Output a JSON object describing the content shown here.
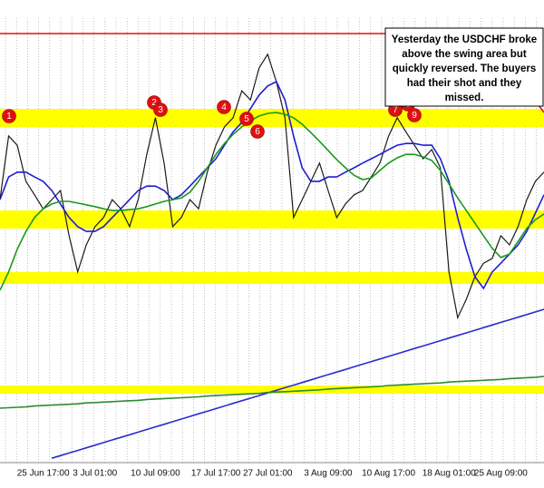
{
  "chart_data": {
    "type": "line",
    "categories": [
      null,
      null,
      null,
      null,
      null,
      "25 Jun 17:00",
      null,
      null,
      null,
      null,
      null,
      "3 Jul 01:00",
      null,
      null,
      null,
      null,
      null,
      null,
      "10 Jul 09:00",
      null,
      null,
      null,
      null,
      null,
      null,
      "17 Jul 17:00",
      null,
      null,
      null,
      null,
      null,
      "27 Jul 01:00",
      null,
      null,
      null,
      null,
      null,
      null,
      "3 Aug 09:00",
      null,
      null,
      null,
      null,
      null,
      null,
      "10 Aug 17:00",
      null,
      null,
      null,
      null,
      null,
      null,
      "18 Aug 01:00",
      null,
      null,
      null,
      null,
      null,
      "25 Aug 09:00",
      null,
      null,
      null,
      null,
      null
    ],
    "ylim": [
      0,
      100
    ],
    "series": [
      {
        "color": "#1a1a1a",
        "values": [
          60.4,
          75,
          72.9,
          64.6,
          61.5,
          58.3,
          60.4,
          62.5,
          52.1,
          43.8,
          50,
          54.2,
          56.3,
          60.4,
          58.3,
          54.2,
          60.4,
          70.8,
          79.2,
          68.8,
          54.2,
          56.3,
          60.4,
          58.3,
          66.7,
          72.9,
          77.1,
          79.2,
          85.4,
          83.3,
          90.6,
          93.8,
          87.5,
          79.2,
          56.3,
          60.4,
          64.6,
          68.8,
          62.5,
          56.3,
          59.4,
          61.5,
          62.5,
          65.6,
          68.8,
          75,
          79.2,
          76,
          72.9,
          69.8,
          71.9,
          67.7,
          43.8,
          33.3,
          37.5,
          42.7,
          45.8,
          46.9,
          52.1,
          50,
          54.2,
          60.4,
          64.6,
          66.7
        ]
      },
      {
        "color": "#1f1fd0",
        "values": [
          60.4,
          65.6,
          66.7,
          66.7,
          65.6,
          64.6,
          62.5,
          59.4,
          56.3,
          54.2,
          53.1,
          53.1,
          54.2,
          56.3,
          58.3,
          60.4,
          62.5,
          63.5,
          63.5,
          62.5,
          60.4,
          61.5,
          63.5,
          65.6,
          67.7,
          69.8,
          72.9,
          76,
          78.1,
          81.3,
          84.4,
          86.5,
          87.5,
          83.3,
          75,
          67.7,
          64.6,
          64.6,
          65.6,
          65.6,
          66.7,
          67.7,
          68.8,
          69.8,
          70.8,
          71.9,
          72.9,
          73.3,
          73.3,
          72.9,
          72.9,
          69.8,
          64.6,
          56.3,
          49,
          42.7,
          40,
          43.8,
          45.8,
          47.9,
          50,
          53.1,
          57.3,
          61.5
        ]
      },
      {
        "color": "#1a9a1a",
        "values": [
          39.6,
          43.8,
          49,
          53.1,
          56.3,
          58.3,
          59.4,
          60,
          60,
          59.6,
          59.2,
          58.8,
          58.3,
          57.9,
          57.9,
          58.1,
          58.3,
          58.8,
          59.4,
          60,
          60.4,
          60.8,
          62.1,
          64.6,
          67.7,
          70.8,
          73.3,
          75.4,
          77.1,
          78.5,
          79.6,
          80.2,
          80.4,
          80,
          79.2,
          77.7,
          75.8,
          73.8,
          71.7,
          69.6,
          67.7,
          66,
          65,
          65.4,
          67.1,
          68.8,
          70,
          70.8,
          70.8,
          70.2,
          69.4,
          67.1,
          64,
          60.8,
          57.9,
          55,
          52.1,
          49.2,
          47.1,
          47.9,
          50.8,
          53.8,
          55.8,
          57.1
        ]
      },
      {
        "color": "#2b2bd0",
        "values": [
          null,
          null,
          null,
          null,
          null,
          null,
          1,
          1.6,
          2.2,
          2.8,
          3.4,
          4,
          4.6,
          5.2,
          5.8,
          6.4,
          7,
          7.6,
          8.2,
          8.8,
          9.4,
          10,
          10.6,
          11.2,
          11.8,
          12.4,
          13,
          13.6,
          14.2,
          14.8,
          15.4,
          16,
          16.6,
          17.2,
          17.8,
          18.4,
          19,
          19.6,
          20.2,
          20.8,
          21.4,
          22,
          22.6,
          23.2,
          23.8,
          24.4,
          25,
          25.6,
          26.2,
          26.8,
          27.4,
          28,
          28.6,
          29.2,
          29.8,
          30.4,
          31,
          31.6,
          32.2,
          32.8,
          33.4,
          34,
          34.6,
          35.2
        ]
      },
      {
        "color": "#2e8b2e",
        "values": [
          12.5,
          12.6,
          12.7,
          12.8,
          13,
          13.1,
          13.2,
          13.3,
          13.4,
          13.5,
          13.7,
          13.8,
          13.9,
          14,
          14.1,
          14.2,
          14.3,
          14.5,
          14.6,
          14.7,
          14.8,
          14.9,
          15,
          15.1,
          15.3,
          15.4,
          15.5,
          15.6,
          15.7,
          15.8,
          15.9,
          16.1,
          16.2,
          16.3,
          16.4,
          16.5,
          16.6,
          16.7,
          16.9,
          17,
          17.1,
          17.2,
          17.3,
          17.4,
          17.5,
          17.7,
          17.8,
          17.9,
          18,
          18.1,
          18.2,
          18.3,
          18.5,
          18.6,
          18.7,
          18.8,
          18.9,
          19,
          19.1,
          19.3,
          19.4,
          19.5,
          19.6,
          19.8
        ]
      }
    ],
    "markers": [
      "1",
      "2",
      "3",
      "4",
      "5",
      "6",
      "7",
      "8",
      "9"
    ],
    "annotation": [
      "Yesterday the USDCHF broke",
      "above the swing area but",
      "quickly reversed.  The buyers",
      "had their shot and they",
      "missed."
    ]
  }
}
